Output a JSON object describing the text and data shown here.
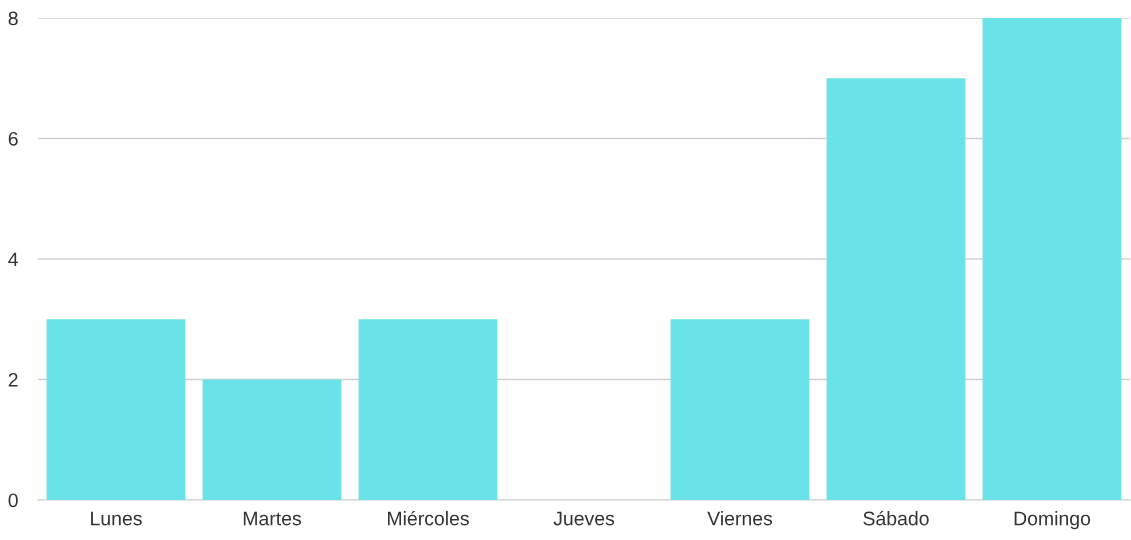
{
  "chart_data": {
    "type": "bar",
    "categories": [
      "Lunes",
      "Martes",
      "Miércoles",
      "Jueves",
      "Viernes",
      "Sábado",
      "Domingo"
    ],
    "values": [
      3,
      2,
      3,
      0,
      3,
      7,
      8
    ],
    "color": "#6ae3e8",
    "ylim": [
      0,
      8
    ],
    "yticks": [
      0,
      2,
      4,
      6,
      8
    ],
    "grid": "y"
  }
}
